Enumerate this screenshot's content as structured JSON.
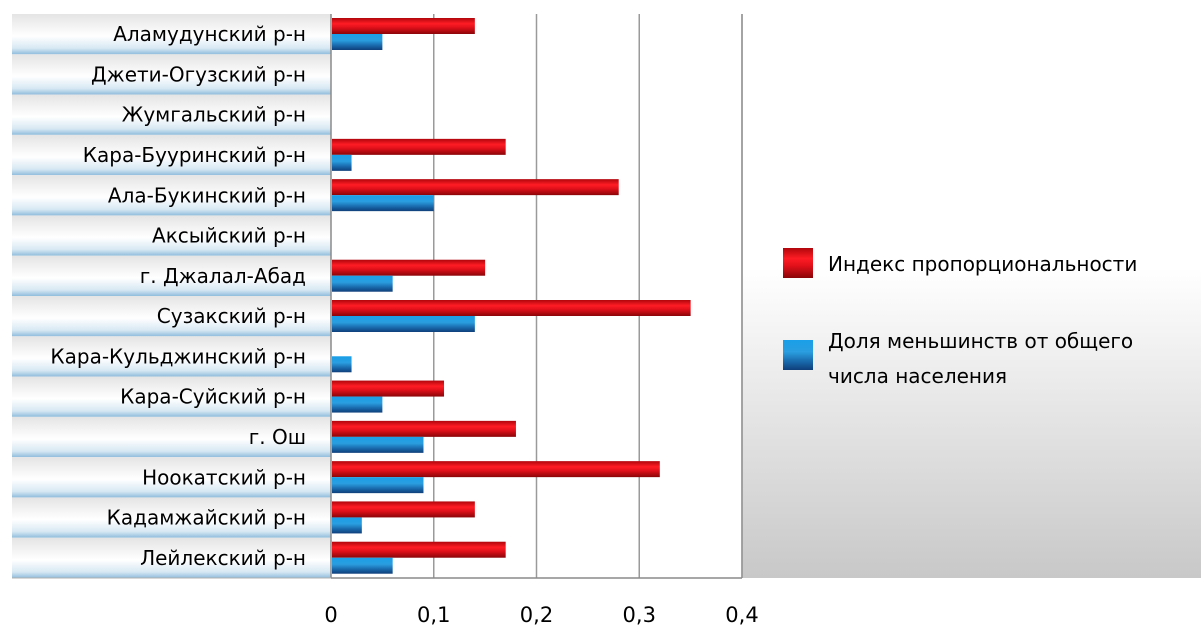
{
  "chart_data": {
    "type": "bar",
    "orientation": "horizontal",
    "categories": [
      "Аламудунский р-н",
      "Джети-Огузский р-н",
      "Жумгальский р-н",
      "Кара-Бууринский р-н",
      "Ала-Букинский р-н",
      "Аксыйский р-н",
      "г. Джалал-Абад",
      "Сузакский р-н",
      "Кара-Кульджинский р-н",
      "Кара-Суйский р-н",
      "г. Ош",
      "Ноокатский р-н",
      "Кадамжайский р-н",
      "Лейлекский р-н"
    ],
    "series": [
      {
        "name": "Индекс пропорциональности",
        "color": "#d8141c",
        "values": [
          0.14,
          0,
          0,
          0.17,
          0.28,
          0,
          0.15,
          0.35,
          0,
          0.11,
          0.18,
          0.32,
          0.14,
          0.17
        ]
      },
      {
        "name": "Доля меньшинств от общего числа населения",
        "color": "#1f86c8",
        "values": [
          0.05,
          0,
          0,
          0.02,
          0.1,
          0,
          0.06,
          0.14,
          0.02,
          0.05,
          0.09,
          0.09,
          0.03,
          0.06
        ]
      }
    ],
    "x_ticks": [
      "0",
      "0,1",
      "0,2",
      "0,3",
      "0,4"
    ],
    "xlim": [
      0,
      0.4
    ],
    "title": "",
    "xlabel": "",
    "ylabel": "",
    "grid": true,
    "legend_position": "right"
  }
}
